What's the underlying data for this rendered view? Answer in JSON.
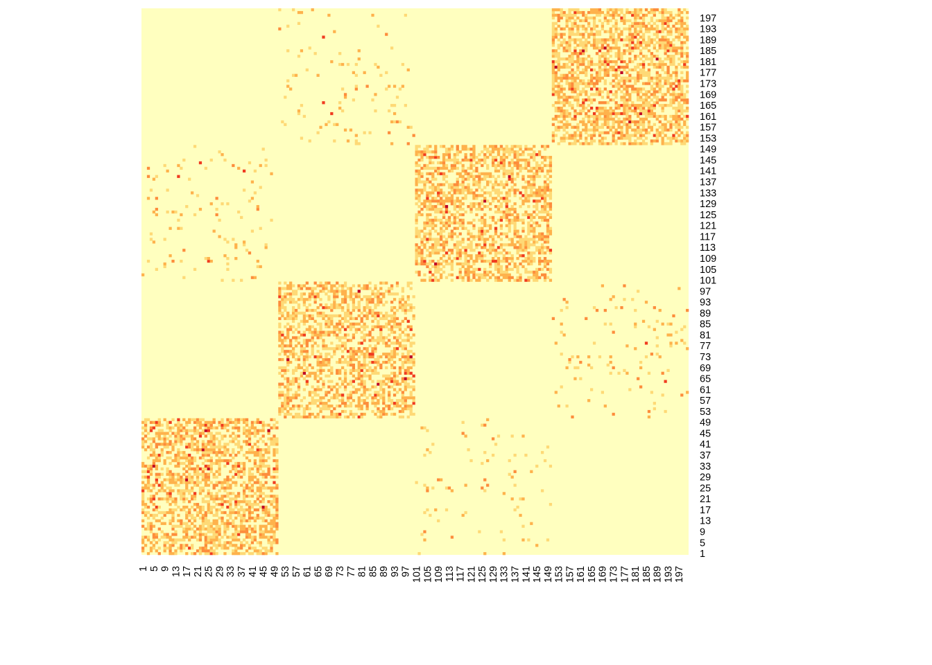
{
  "chart_data": {
    "type": "heatmap",
    "title": "",
    "xlabel": "",
    "ylabel": "",
    "n": 200,
    "row_labels_start": 1,
    "row_labels_step": 4,
    "col_labels_start": 1,
    "col_labels_step": 4,
    "blocks": [
      {
        "rows": [
          1,
          50
        ],
        "cols": [
          1,
          50
        ],
        "density": 0.55,
        "kind": "dense"
      },
      {
        "rows": [
          51,
          100
        ],
        "cols": [
          51,
          100
        ],
        "density": 0.5,
        "kind": "dense"
      },
      {
        "rows": [
          101,
          150
        ],
        "cols": [
          101,
          150
        ],
        "density": 0.55,
        "kind": "dense"
      },
      {
        "rows": [
          151,
          200
        ],
        "cols": [
          151,
          200
        ],
        "density": 0.6,
        "kind": "dense"
      },
      {
        "rows": [
          1,
          50
        ],
        "cols": [
          101,
          150
        ],
        "density": 0.035,
        "kind": "sparse"
      },
      {
        "rows": [
          51,
          100
        ],
        "cols": [
          151,
          200
        ],
        "density": 0.04,
        "kind": "sparse"
      },
      {
        "rows": [
          101,
          150
        ],
        "cols": [
          1,
          50
        ],
        "density": 0.04,
        "kind": "sparse"
      },
      {
        "rows": [
          151,
          200
        ],
        "cols": [
          51,
          100
        ],
        "density": 0.035,
        "kind": "sparse"
      }
    ],
    "palette": [
      "#FFFFBF",
      "#FED976",
      "#FEB24C",
      "#FD8D3C",
      "#F03B20",
      "#BD0026"
    ],
    "background_color": "#FFFFBF"
  }
}
